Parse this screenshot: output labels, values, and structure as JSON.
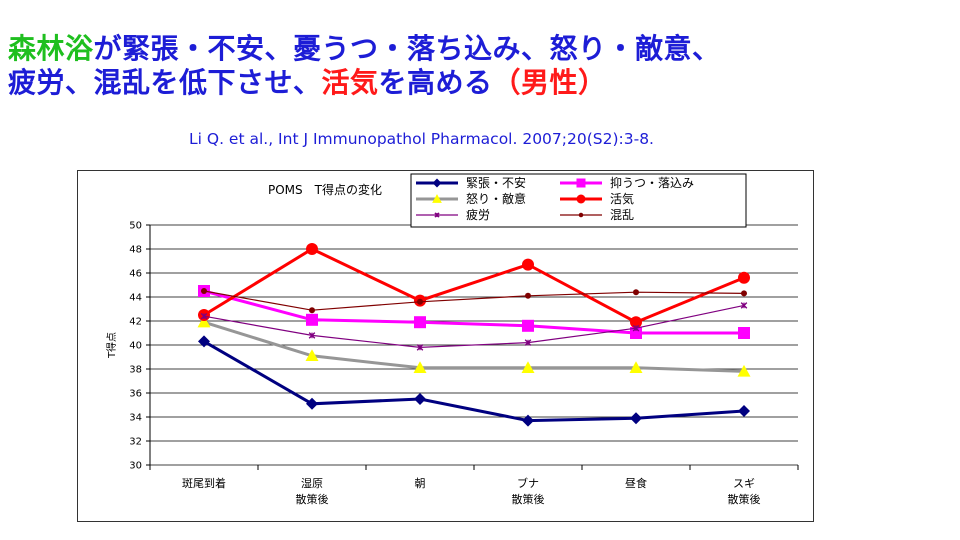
{
  "slide": {
    "title_parts": [
      {
        "text": "森林浴",
        "color": "green"
      },
      {
        "text": "が緊張・不安、憂うつ・落ち込み、怒り・敵意、",
        "color": "blue"
      },
      {
        "text": "疲労、混乱を低下させ、",
        "color": "blue"
      },
      {
        "text": "活気",
        "color": "red"
      },
      {
        "text": "を高める",
        "color": "blue"
      },
      {
        "text": "（男性）",
        "color": "red"
      }
    ],
    "citation": "Li Q. et al., Int J Immunopathol Pharmacol. 2007;20(S2):3-8."
  },
  "colors": {
    "title_green": "#1fbf1f",
    "title_blue": "#1d1dd6",
    "title_red": "#ff1a1a"
  },
  "chart_data": {
    "type": "line",
    "title": "POMS　T得点の変化",
    "ylabel": "T得点",
    "xlabel": "",
    "ylim": [
      30,
      50
    ],
    "yticks": [
      30,
      32,
      34,
      36,
      38,
      40,
      42,
      44,
      46,
      48,
      50
    ],
    "categories": [
      "斑尾到着",
      "湿原\n散策後",
      "朝",
      "ブナ\n散策後",
      "昼食",
      "スギ\n散策後"
    ],
    "grid": "horizontal",
    "legend_position": "top-right",
    "series": [
      {
        "name": "緊張・不安",
        "values": [
          40.3,
          35.1,
          35.5,
          33.7,
          33.9,
          34.5
        ],
        "color": "#000080",
        "marker": "diamond",
        "width": "thick"
      },
      {
        "name": "抑うつ・落込み",
        "values": [
          44.5,
          42.1,
          41.9,
          41.6,
          41.0,
          41.0
        ],
        "color": "#ff00ff",
        "marker": "square",
        "width": "thick"
      },
      {
        "name": "怒り・敵意",
        "values": [
          41.9,
          39.1,
          38.1,
          38.1,
          38.1,
          37.8
        ],
        "color": "#969696",
        "marker": "triangle",
        "width": "thick"
      },
      {
        "name": "活気",
        "values": [
          42.5,
          48.0,
          43.7,
          46.7,
          41.9,
          45.6
        ],
        "color": "#ff0000",
        "marker": "circle",
        "width": "thick"
      },
      {
        "name": "疲労",
        "values": [
          42.4,
          40.8,
          39.8,
          40.2,
          41.4,
          43.3
        ],
        "color": "#800080",
        "marker": "x",
        "width": "thin"
      },
      {
        "name": "混乱",
        "values": [
          44.5,
          42.9,
          43.6,
          44.1,
          44.4,
          44.3
        ],
        "color": "#800000",
        "marker": "dot",
        "width": "thin"
      }
    ]
  }
}
